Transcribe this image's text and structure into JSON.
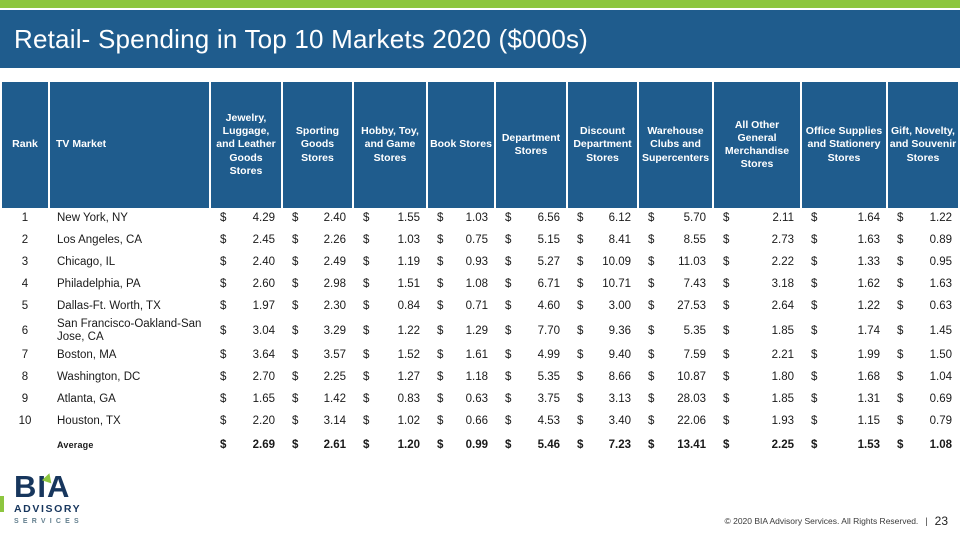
{
  "slide": {
    "title": "Retail- Spending in Top 10 Markets 2020 ($000s)",
    "footer": {
      "copyright": "© 2020 BIA Advisory Services. All Rights Reserved.",
      "separator": "|",
      "page_number": "23"
    },
    "logo": {
      "name": "BIA",
      "line2": "ADVISORY",
      "line3": "SERVICES"
    }
  },
  "colors": {
    "accent_green": "#8DC63F",
    "header_blue": "#1F5C8D",
    "logo_navy": "#17365D",
    "logo_muted": "#64808F",
    "body_text": "#1A1A1A"
  },
  "table": {
    "currency_symbol": "$",
    "columns": [
      "Rank",
      "TV Market",
      "Jewelry, Luggage, and Leather Goods Stores",
      "Sporting Goods Stores",
      "Hobby, Toy, and Game Stores",
      "Book Stores",
      "Department Stores",
      "Discount Department Stores",
      "Warehouse Clubs and Supercenters",
      "All Other General Merchandise Stores",
      "Office Supplies and Stationery Stores",
      "Gift, Novelty, and Souvenir Stores"
    ],
    "rows": [
      {
        "rank": "1",
        "market": "New York, NY",
        "values": [
          "4.29",
          "2.40",
          "1.55",
          "1.03",
          "6.56",
          "6.12",
          "5.70",
          "2.11",
          "1.64",
          "1.22"
        ]
      },
      {
        "rank": "2",
        "market": "Los Angeles, CA",
        "values": [
          "2.45",
          "2.26",
          "1.03",
          "0.75",
          "5.15",
          "8.41",
          "8.55",
          "2.73",
          "1.63",
          "0.89"
        ]
      },
      {
        "rank": "3",
        "market": "Chicago, IL",
        "values": [
          "2.40",
          "2.49",
          "1.19",
          "0.93",
          "5.27",
          "10.09",
          "11.03",
          "2.22",
          "1.33",
          "0.95"
        ]
      },
      {
        "rank": "4",
        "market": "Philadelphia, PA",
        "values": [
          "2.60",
          "2.98",
          "1.51",
          "1.08",
          "6.71",
          "10.71",
          "7.43",
          "3.18",
          "1.62",
          "1.63"
        ]
      },
      {
        "rank": "5",
        "market": "Dallas-Ft. Worth, TX",
        "values": [
          "1.97",
          "2.30",
          "0.84",
          "0.71",
          "4.60",
          "3.00",
          "27.53",
          "2.64",
          "1.22",
          "0.63"
        ]
      },
      {
        "rank": "6",
        "market": "San Francisco-Oakland-San Jose, CA",
        "values": [
          "3.04",
          "3.29",
          "1.22",
          "1.29",
          "7.70",
          "9.36",
          "5.35",
          "1.85",
          "1.74",
          "1.45"
        ]
      },
      {
        "rank": "7",
        "market": "Boston, MA",
        "values": [
          "3.64",
          "3.57",
          "1.52",
          "1.61",
          "4.99",
          "9.40",
          "7.59",
          "2.21",
          "1.99",
          "1.50"
        ]
      },
      {
        "rank": "8",
        "market": "Washington, DC",
        "values": [
          "2.70",
          "2.25",
          "1.27",
          "1.18",
          "5.35",
          "8.66",
          "10.87",
          "1.80",
          "1.68",
          "1.04"
        ]
      },
      {
        "rank": "9",
        "market": "Atlanta, GA",
        "values": [
          "1.65",
          "1.42",
          "0.83",
          "0.63",
          "3.75",
          "3.13",
          "28.03",
          "1.85",
          "1.31",
          "0.69"
        ]
      },
      {
        "rank": "10",
        "market": "Houston, TX",
        "values": [
          "2.20",
          "3.14",
          "1.02",
          "0.66",
          "4.53",
          "3.40",
          "22.06",
          "1.93",
          "1.15",
          "0.79"
        ]
      }
    ],
    "average": {
      "label": "Average",
      "values": [
        "2.69",
        "2.61",
        "1.20",
        "0.99",
        "5.46",
        "7.23",
        "13.41",
        "2.25",
        "1.53",
        "1.08"
      ]
    }
  }
}
